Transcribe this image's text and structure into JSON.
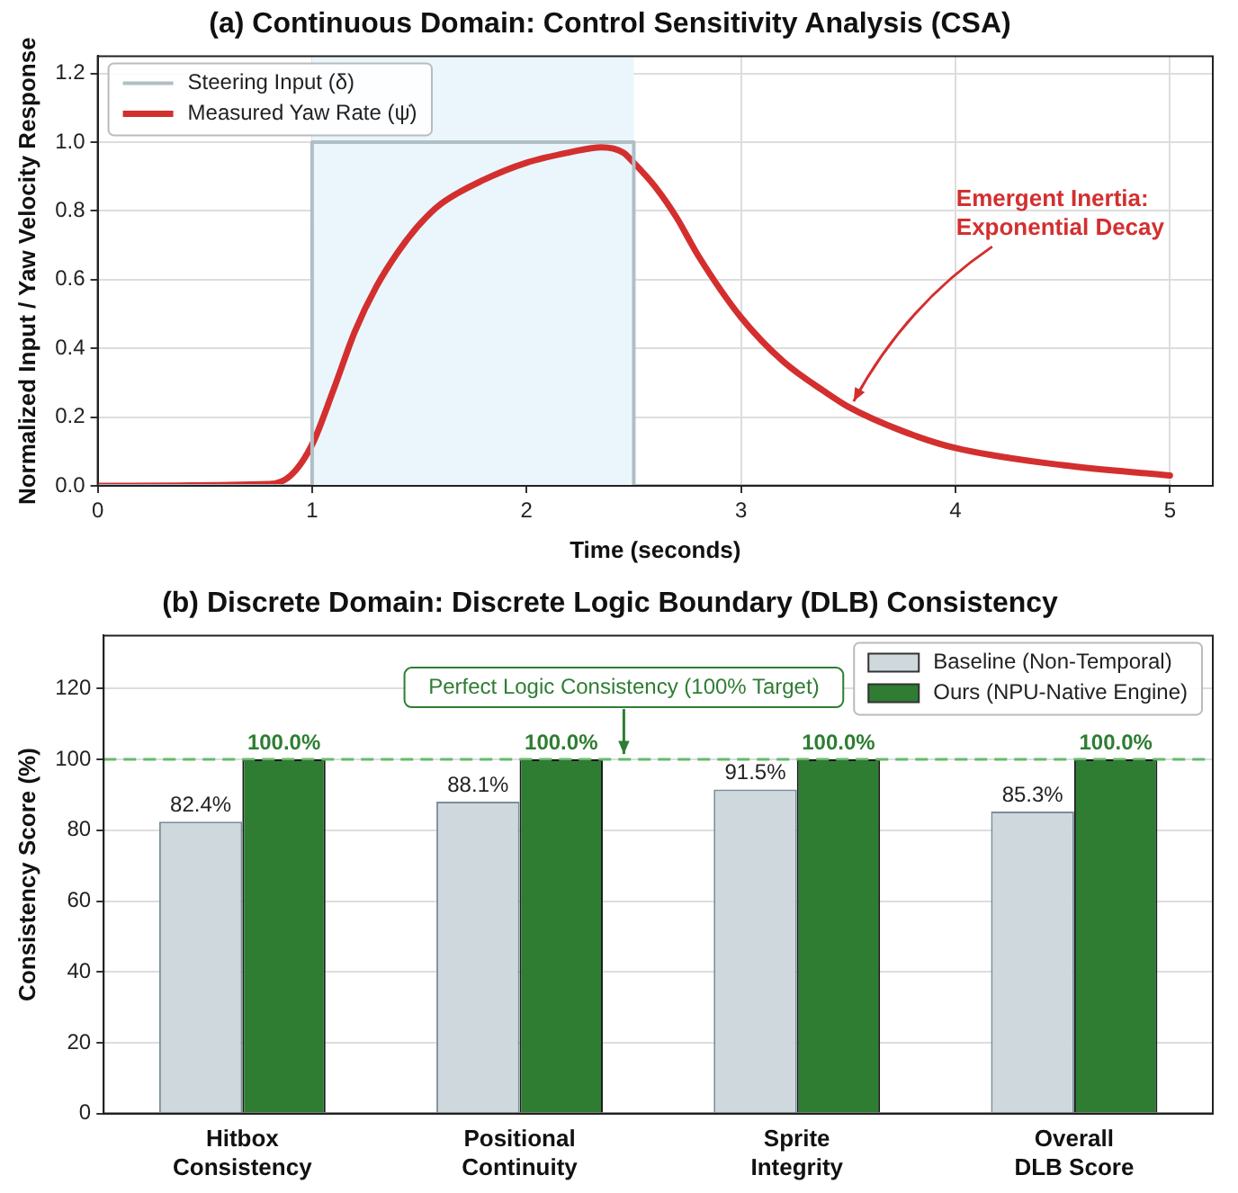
{
  "chart_data": [
    {
      "type": "line",
      "title": "(a) Continuous Domain: Control Sensitivity Analysis (CSA)",
      "xlabel": "Time (seconds)",
      "ylabel": "Normalized Input / Yaw Velocity Response",
      "xlim": [
        0,
        5.2
      ],
      "xticks": [
        0,
        1,
        2,
        3,
        4,
        5
      ],
      "ylim": [
        0,
        1.25
      ],
      "yticks": [
        {
          "value": 0,
          "label": "0.0"
        },
        0.2,
        0.4,
        0.6,
        0.8,
        {
          "value": 1,
          "label": "1.0"
        },
        1.2
      ],
      "grid": true,
      "legend": "top left",
      "bands": [
        {
          "axis": "x",
          "from": 1,
          "to": 2.5,
          "color": "#eaf6fc"
        }
      ],
      "annotations": [
        {
          "text": "Emergent Inertia:\nExponential Decay",
          "x": 3.5,
          "y": 0.23
        }
      ],
      "series": [
        {
          "name": "Steering Input (δ)",
          "type": "step",
          "color": "#b0bec5",
          "x": [
            0,
            1,
            2.5,
            5
          ],
          "values": [
            0,
            1,
            0,
            0
          ]
        },
        {
          "name": "Measured Yaw Rate (ψ̇)",
          "type": "line",
          "color": "#d32f2f",
          "x": [
            0,
            0.8,
            0.9,
            1.0,
            1.1,
            1.2,
            1.3,
            1.4,
            1.5,
            1.6,
            1.8,
            2.0,
            2.2,
            2.35,
            2.45,
            2.5,
            2.6,
            2.7,
            2.8,
            3.0,
            3.2,
            3.4,
            3.5,
            3.75,
            4.0,
            4.5,
            5.0
          ],
          "values": [
            0,
            0.005,
            0.03,
            0.12,
            0.28,
            0.45,
            0.58,
            0.68,
            0.76,
            0.82,
            0.89,
            0.94,
            0.97,
            0.985,
            0.97,
            0.94,
            0.87,
            0.78,
            0.67,
            0.49,
            0.36,
            0.27,
            0.23,
            0.16,
            0.11,
            0.06,
            0.03
          ]
        }
      ]
    },
    {
      "type": "bar",
      "title": "(b) Discrete Domain: Discrete Logic Boundary (DLB) Consistency",
      "ylabel": "Consistency Score (%)",
      "categories": [
        "Hitbox\nConsistency",
        "Positional\nContinuity",
        "Sprite\nIntegrity",
        "Overall\nDLB Score"
      ],
      "ylim": [
        0,
        135
      ],
      "yticks": [
        0,
        20,
        40,
        60,
        80,
        100,
        120
      ],
      "grid": "y",
      "legend": "top right",
      "ref_lines": [
        {
          "axis": "y",
          "value": 100,
          "label": "Perfect Logic Consistency (100% Target)",
          "color": "#66bb6a",
          "line_style": "dashed"
        }
      ],
      "series": [
        {
          "name": "Baseline (Non-Temporal)",
          "color": "#cfd8dc",
          "values": [
            82.4,
            88.1,
            91.5,
            85.3
          ],
          "value_labels": [
            "82.4%",
            "88.1%",
            "91.5%",
            "85.3%"
          ]
        },
        {
          "name": "Ours (NPU-Native Engine)",
          "color": "#2e7d32",
          "values": [
            100.0,
            100.0,
            100.0,
            100.0
          ],
          "value_labels": [
            "100.0%",
            "100.0%",
            "100.0%",
            "100.0%"
          ]
        }
      ]
    }
  ]
}
